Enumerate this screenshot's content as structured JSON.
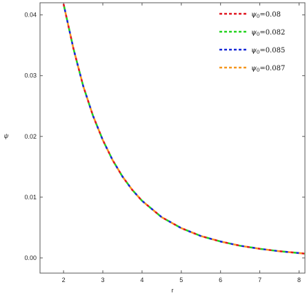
{
  "chart_data": {
    "type": "line",
    "title": "",
    "xlabel": "r",
    "ylabel": "ψ",
    "xlim": [
      1.4,
      8.15
    ],
    "ylim": [
      -0.0025,
      0.042
    ],
    "xticks": [
      2,
      3,
      4,
      5,
      6,
      7,
      8
    ],
    "yticks": [
      0.0,
      0.01,
      0.02,
      0.03,
      0.04
    ],
    "ytick_labels": [
      "0.00",
      "0.01",
      "0.02",
      "0.03",
      "0.04"
    ],
    "grid": false,
    "legend_position": "top-right",
    "line_style": "dashed",
    "x": [
      2.0,
      2.25,
      2.5,
      2.75,
      3.0,
      3.25,
      3.5,
      3.75,
      4.0,
      4.5,
      5.0,
      5.5,
      6.0,
      6.5,
      7.0,
      7.5,
      8.0,
      8.15
    ],
    "series": [
      {
        "name": "ψ0=0.08",
        "legend_base": "ψ",
        "legend_sub": "0",
        "legend_value": "=0.08",
        "color": "#e0141e",
        "values": [
          0.0418,
          0.0345,
          0.0283,
          0.0234,
          0.0194,
          0.0161,
          0.0134,
          0.0112,
          0.0094,
          0.0067,
          0.0049,
          0.0036,
          0.0027,
          0.002,
          0.0015,
          0.0011,
          0.0008,
          0.0007
        ]
      },
      {
        "name": "ψ0=0.082",
        "legend_base": "ψ",
        "legend_sub": "0",
        "legend_value": "=0.082",
        "color": "#22d31e",
        "values": [
          0.0418,
          0.0345,
          0.0283,
          0.0234,
          0.0194,
          0.0161,
          0.0134,
          0.0112,
          0.0094,
          0.0067,
          0.0049,
          0.0036,
          0.0027,
          0.002,
          0.0015,
          0.0011,
          0.0008,
          0.0007
        ]
      },
      {
        "name": "ψ0=0.085",
        "legend_base": "ψ",
        "legend_sub": "0",
        "legend_value": "=0.085",
        "color": "#1528d6",
        "values": [
          0.0418,
          0.0345,
          0.0283,
          0.0234,
          0.0194,
          0.0161,
          0.0134,
          0.0112,
          0.0094,
          0.0067,
          0.0049,
          0.0036,
          0.0027,
          0.002,
          0.0015,
          0.0011,
          0.0008,
          0.0007
        ]
      },
      {
        "name": "ψ0=0.087",
        "legend_base": "ψ",
        "legend_sub": "0",
        "legend_value": "=0.087",
        "color": "#f5961e",
        "values": [
          0.0418,
          0.0345,
          0.0283,
          0.0234,
          0.0194,
          0.0161,
          0.0134,
          0.0112,
          0.0094,
          0.0067,
          0.0049,
          0.0036,
          0.0027,
          0.002,
          0.0015,
          0.0011,
          0.0008,
          0.0007
        ]
      }
    ]
  }
}
